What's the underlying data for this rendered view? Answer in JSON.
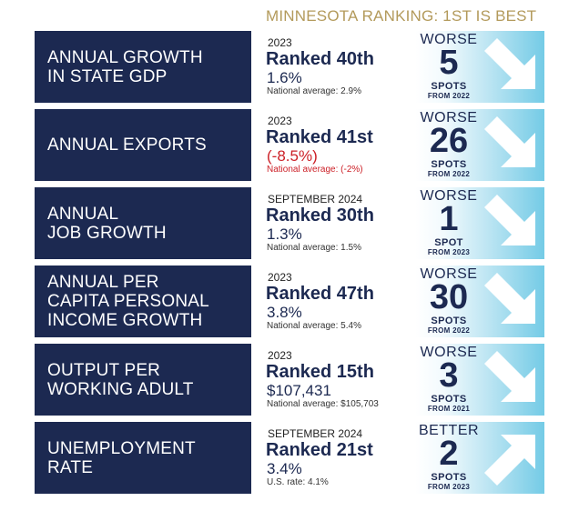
{
  "header": "MINNESOTA RANKING: 1ST IS BEST",
  "colors": {
    "navy": "#1c2951",
    "gold": "#b39a5b",
    "negative_red": "#cc2027",
    "light_blue": "#74cbe6"
  },
  "rows": [
    {
      "label": "ANNUAL GROWTH\nIN STATE GDP",
      "period": "2023",
      "rank": "Ranked 40th",
      "value": "1.6%",
      "avg": "National average: 2.9%",
      "direction": "WORSE",
      "change": "5",
      "unit": "SPOTS",
      "from": "FROM 2022",
      "arrow_icon": "arrow-down-right-icon"
    },
    {
      "label": "ANNUAL EXPORTS",
      "period": "2023",
      "rank": "Ranked 41st",
      "value": "(-8.5%)",
      "avg": "National average: (-2%)",
      "direction": "WORSE",
      "change": "26",
      "unit": "SPOTS",
      "from": "FROM 2022",
      "arrow_icon": "arrow-down-right-icon"
    },
    {
      "label": "ANNUAL\nJOB GROWTH",
      "period": "SEPTEMBER 2024",
      "rank": "Ranked 30th",
      "value": "1.3%",
      "avg": "National average: 1.5%",
      "direction": "WORSE",
      "change": "1",
      "unit": "SPOT",
      "from": "FROM 2023",
      "arrow_icon": "arrow-down-right-icon"
    },
    {
      "label": "ANNUAL PER\nCAPITA PERSONAL\nINCOME GROWTH",
      "period": "2023",
      "rank": "Ranked 47th",
      "value": "3.8%",
      "avg": "National average: 5.4%",
      "direction": "WORSE",
      "change": "30",
      "unit": "SPOTS",
      "from": "FROM 2022",
      "arrow_icon": "arrow-down-right-icon"
    },
    {
      "label": "OUTPUT PER\nWORKING ADULT",
      "period": "2023",
      "rank": "Ranked 15th",
      "value": "$107,431",
      "avg": "National average: $105,703",
      "direction": "WORSE",
      "change": "3",
      "unit": "SPOTS",
      "from": "FROM 2021",
      "arrow_icon": "arrow-down-right-icon"
    },
    {
      "label": "UNEMPLOYMENT\nRATE",
      "period": "SEPTEMBER 2024",
      "rank": "Ranked 21st",
      "value": "3.4%",
      "avg": "U.S. rate: 4.1%",
      "direction": "BETTER",
      "change": "2",
      "unit": "SPOTS",
      "from": "FROM 2023",
      "arrow_icon": "arrow-up-right-icon"
    }
  ]
}
